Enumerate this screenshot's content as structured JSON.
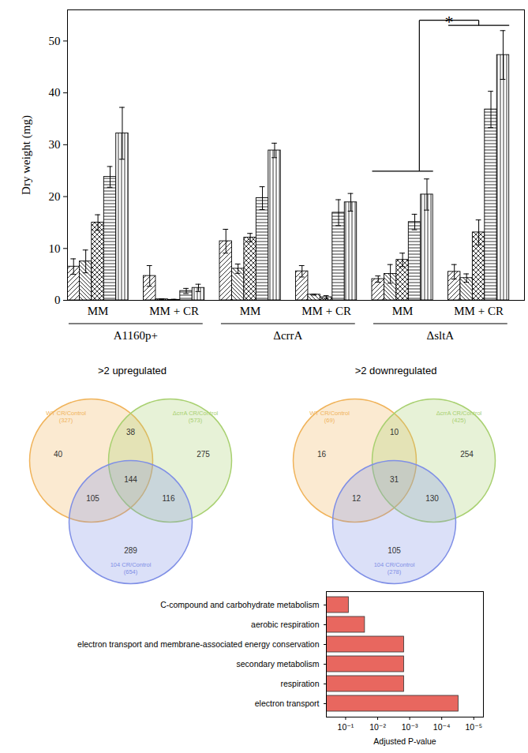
{
  "chart_data": [
    {
      "type": "bar",
      "y_label": "Dry weight (mg)",
      "categories": [
        "MM",
        "MM + CR",
        "MM",
        "MM + CR",
        "MM",
        "MM + CR"
      ],
      "groups": [
        {
          "label": "A1160p+",
          "members": [
            0,
            1
          ]
        },
        {
          "label": "ΔcrrA",
          "members": [
            2,
            3
          ]
        },
        {
          "label": "ΔsltA",
          "members": [
            4,
            5
          ]
        }
      ],
      "series": [
        {
          "values": [
            6.5,
            4.7,
            11.4,
            5.6,
            4.1,
            5.5
          ],
          "errors": [
            1.5,
            2.0,
            2.3,
            1.1,
            0.6,
            1.4
          ]
        },
        {
          "values": [
            7.5,
            0.2,
            6.1,
            1.1,
            5.1,
            4.3
          ],
          "errors": [
            2.2,
            0.1,
            0.9,
            0.1,
            1.8,
            0.8
          ]
        },
        {
          "values": [
            15.0,
            0.1,
            12.1,
            0.6,
            7.8,
            13.1
          ],
          "errors": [
            1.5,
            0.1,
            0.8,
            0.3,
            1.3,
            2.4
          ]
        },
        {
          "values": [
            23.8,
            1.8,
            19.7,
            16.9,
            15.1,
            36.8
          ],
          "errors": [
            2.0,
            0.5,
            2.2,
            2.5,
            1.5,
            3.5
          ]
        },
        {
          "values": [
            32.2,
            2.4,
            28.9,
            18.9,
            20.4,
            47.3
          ],
          "errors": [
            5.0,
            0.7,
            1.4,
            1.7,
            3.0,
            4.7
          ]
        }
      ],
      "ylim": [
        0,
        56
      ],
      "yticks": [
        0,
        10,
        20,
        30,
        40,
        50
      ],
      "annotations": [
        {
          "text": "*",
          "from": 4,
          "to": 5
        }
      ]
    },
    {
      "type": "venn",
      "title": ">2 upregulated",
      "sets": [
        {
          "label": [
            "WT CR/Control",
            "(327)"
          ],
          "color": "#f0b35a"
        },
        {
          "label": [
            "ΔcrrA CR/Control",
            "(573)"
          ],
          "color": "#a8d070"
        },
        {
          "label": [
            "104 CR/Control",
            "(654)"
          ],
          "color": "#7f8fe6"
        }
      ],
      "regions": {
        "A": 40,
        "B": 275,
        "C": 289,
        "AB": 38,
        "AC": 105,
        "BC": 116,
        "ABC": 144
      }
    },
    {
      "type": "venn",
      "title": ">2 downregulated",
      "sets": [
        {
          "label": [
            "WT CR/Control",
            "(69)"
          ],
          "color": "#f0b35a"
        },
        {
          "label": [
            "ΔcrrA CR/Control",
            "(425)"
          ],
          "color": "#a8d070"
        },
        {
          "label": [
            "104 CR/Control",
            "(278)"
          ],
          "color": "#7f8fe6"
        }
      ],
      "regions": {
        "A": 16,
        "B": 254,
        "C": 105,
        "AB": 10,
        "AC": 12,
        "BC": 130,
        "ABC": 31
      }
    },
    {
      "type": "bar",
      "orientation": "horizontal",
      "log": "x",
      "x_label": "Adjusted P-value",
      "categories": [
        "C-compound and carbohydrate metabolism",
        "aerobic respiration",
        "electron transport and membrane-associated energy conservation",
        "secondary metabolism",
        "respiration",
        "electron transport"
      ],
      "values": [
        0.08,
        0.025,
        0.0015,
        0.0015,
        0.0015,
        3e-05
      ],
      "color": "#e8675f",
      "xlim": [
        0.4,
        5e-06
      ],
      "xticks": [
        {
          "value": 0.1,
          "label": "10⁻¹"
        },
        {
          "value": 0.01,
          "label": "10⁻²"
        },
        {
          "value": 0.001,
          "label": "10⁻³"
        },
        {
          "value": 0.0001,
          "label": "10⁻⁴"
        },
        {
          "value": 1e-05,
          "label": "10⁻⁵"
        }
      ]
    }
  ]
}
